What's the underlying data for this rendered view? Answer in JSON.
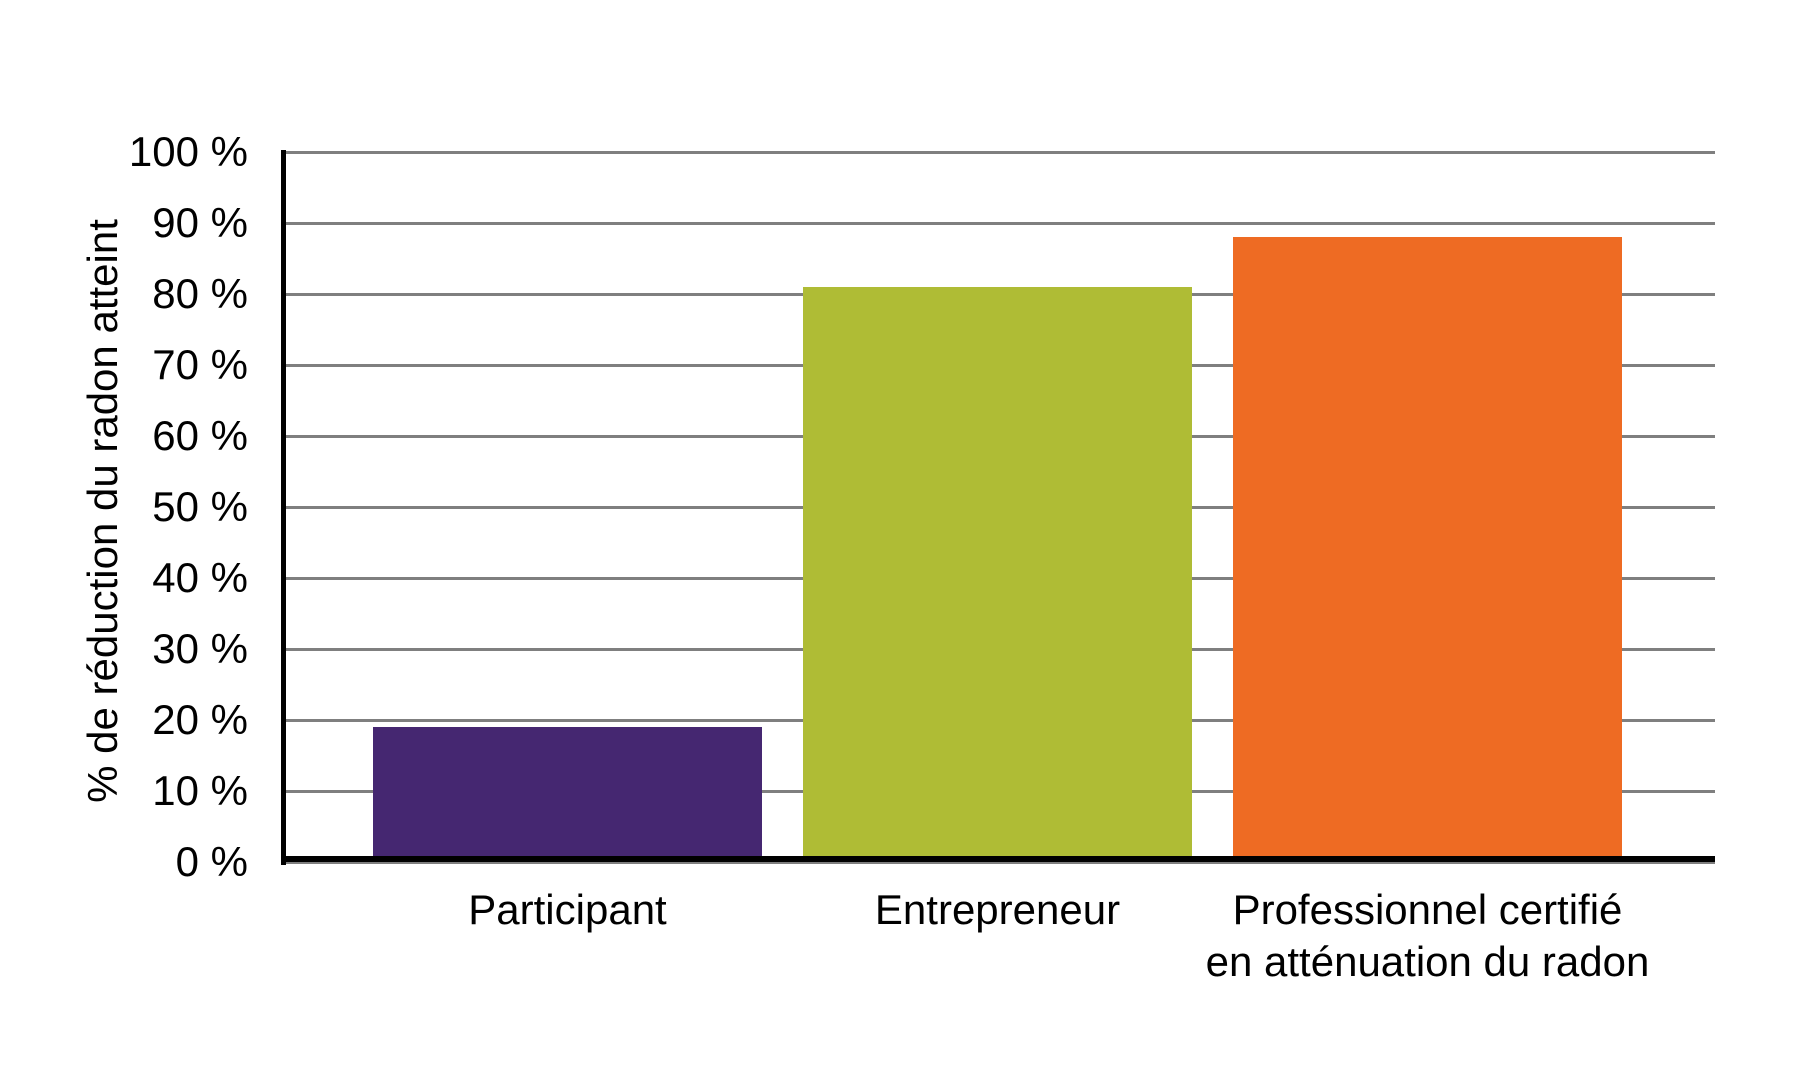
{
  "chart_data": {
    "type": "bar",
    "title": "",
    "xlabel": "",
    "ylabel": "% de réduction du radon atteint",
    "ylim": [
      0,
      100
    ],
    "ytick_step": 10,
    "ytick_labels": [
      "0 %",
      "10 %",
      "20 %",
      "30 %",
      "40 %",
      "50 %",
      "60 %",
      "70 %",
      "80 %",
      "90 %",
      "100 %"
    ],
    "categories": [
      {
        "label": "Participant",
        "lines": [
          "Participant"
        ]
      },
      {
        "label": "Entrepreneur",
        "lines": [
          "Entrepreneur"
        ]
      },
      {
        "label": "Professionnel certifié en atténuation du radon",
        "lines": [
          "Professionnel certifié",
          "en atténuation du radon"
        ]
      }
    ],
    "values": [
      19,
      81,
      88
    ],
    "bar_colors": [
      "#452771",
      "#AFBC35",
      "#EE6B23"
    ],
    "grid": "horizontal",
    "gridline_color": "#7F7F7F",
    "axis_color": "#000000",
    "text_color": "#000000",
    "background": "#FFFFFF",
    "legend": "none"
  }
}
